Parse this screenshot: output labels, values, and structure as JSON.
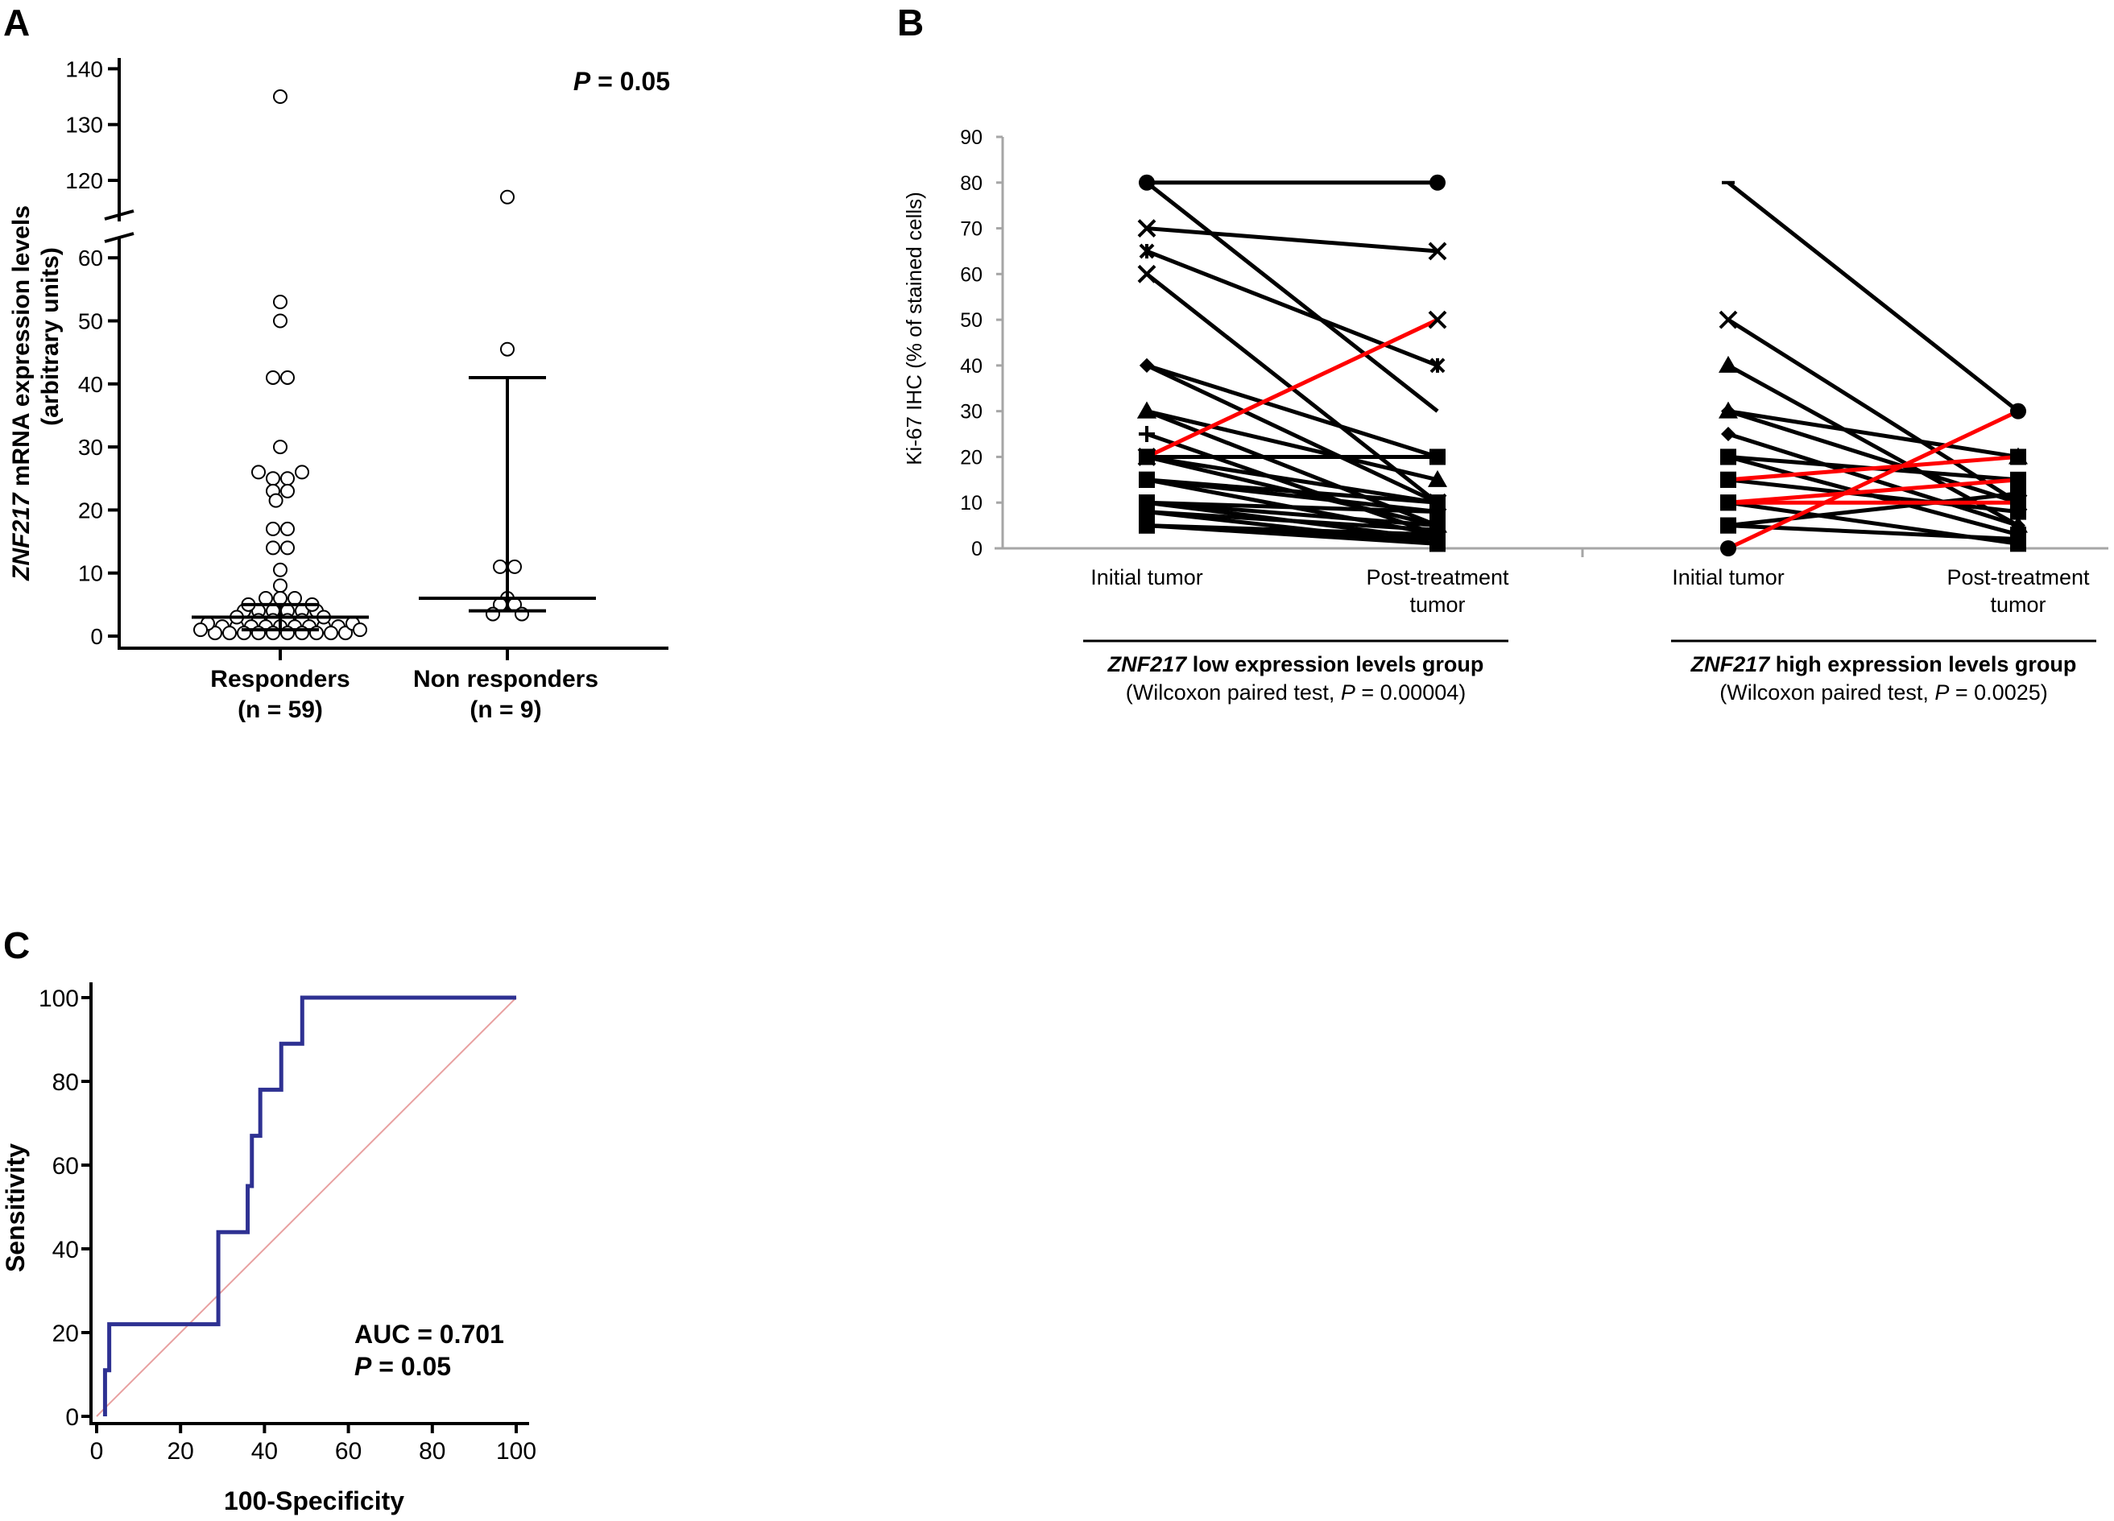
{
  "panels": {
    "a": {
      "letter": "A"
    },
    "b": {
      "letter": "B"
    },
    "c": {
      "letter": "C"
    }
  },
  "colors": {
    "black": "#000000",
    "red": "#ff0000",
    "roc": "#2e3192",
    "diagonal": "#e8a0a0",
    "axisB": "#a6a6a6"
  },
  "chart_data": [
    {
      "id": "A",
      "type": "scatter",
      "ylabel_italic": "ZNF217",
      "ylabel_rest": " mRNA expression levels",
      "ylabel_line2": "(arbitrary units)",
      "pvalue_label": "P",
      "pvalue_rest": " = 0.05",
      "yaxis_break": [
        65,
        115
      ],
      "yticks_lower": [
        0,
        10,
        20,
        30,
        40,
        50,
        60
      ],
      "yticks_upper": [
        120,
        130,
        140
      ],
      "groups": [
        {
          "name": "Responders",
          "n_label": "(n = 59)",
          "median": 3,
          "q1": 1,
          "q3": 5,
          "points": [
            {
              "x": 0,
              "y": 135
            },
            {
              "x": 0,
              "y": 53
            },
            {
              "x": 0,
              "y": 50
            },
            {
              "x": -0.5,
              "y": 41
            },
            {
              "x": 0.5,
              "y": 41
            },
            {
              "x": 0,
              "y": 30
            },
            {
              "x": -1.5,
              "y": 26
            },
            {
              "x": -0.5,
              "y": 25
            },
            {
              "x": 0.5,
              "y": 25
            },
            {
              "x": 1.5,
              "y": 26
            },
            {
              "x": -0.5,
              "y": 23
            },
            {
              "x": 0.5,
              "y": 23
            },
            {
              "x": -0.3,
              "y": 21.5
            },
            {
              "x": -0.5,
              "y": 17
            },
            {
              "x": 0.5,
              "y": 17
            },
            {
              "x": -0.5,
              "y": 14
            },
            {
              "x": 0.5,
              "y": 14
            },
            {
              "x": 0,
              "y": 10.5
            },
            {
              "x": 0,
              "y": 8
            },
            {
              "x": -1,
              "y": 6
            },
            {
              "x": 0,
              "y": 6
            },
            {
              "x": 1,
              "y": 6
            },
            {
              "x": -2.5,
              "y": 4
            },
            {
              "x": -1.5,
              "y": 4
            },
            {
              "x": -0.5,
              "y": 4
            },
            {
              "x": 0.5,
              "y": 4
            },
            {
              "x": 1.5,
              "y": 4
            },
            {
              "x": 2.5,
              "y": 4
            },
            {
              "x": -1.5,
              "y": 2.5
            },
            {
              "x": -0.5,
              "y": 2.5
            },
            {
              "x": 0.5,
              "y": 2.5
            },
            {
              "x": 1.5,
              "y": 2.5
            },
            {
              "x": -4,
              "y": 1.5
            },
            {
              "x": -3,
              "y": 1.5
            },
            {
              "x": -2,
              "y": 1.5
            },
            {
              "x": -1,
              "y": 1.5
            },
            {
              "x": 0,
              "y": 1.5
            },
            {
              "x": 1,
              "y": 1.5
            },
            {
              "x": 2,
              "y": 1.5
            },
            {
              "x": 3,
              "y": 1.5
            },
            {
              "x": 4,
              "y": 1.5
            },
            {
              "x": -4.5,
              "y": 0.5
            },
            {
              "x": -3.5,
              "y": 0.5
            },
            {
              "x": -2.5,
              "y": 0.5
            },
            {
              "x": -1.5,
              "y": 0.5
            },
            {
              "x": -0.5,
              "y": 0.5
            },
            {
              "x": 0.5,
              "y": 0.5
            },
            {
              "x": 1.5,
              "y": 0.5
            },
            {
              "x": 2.5,
              "y": 0.5
            },
            {
              "x": 3.5,
              "y": 0.5
            },
            {
              "x": 4.5,
              "y": 0.5
            },
            {
              "x": 3,
              "y": 3
            },
            {
              "x": -3,
              "y": 3
            },
            {
              "x": 2.2,
              "y": 5
            },
            {
              "x": -2.2,
              "y": 5
            },
            {
              "x": 5,
              "y": 2
            },
            {
              "x": -5,
              "y": 2
            },
            {
              "x": 5.5,
              "y": 1
            },
            {
              "x": -5.5,
              "y": 1
            }
          ]
        },
        {
          "name": "Non responders",
          "n_label": "(n = 9)",
          "median": 6,
          "q1": 4,
          "q3": 41,
          "points": [
            {
              "x": 0,
              "y": 117
            },
            {
              "x": 0,
              "y": 45.5
            },
            {
              "x": -0.5,
              "y": 11
            },
            {
              "x": 0.5,
              "y": 11
            },
            {
              "x": 0,
              "y": 6
            },
            {
              "x": -0.5,
              "y": 5
            },
            {
              "x": 0.5,
              "y": 5
            },
            {
              "x": -1,
              "y": 3.5
            },
            {
              "x": 1,
              "y": 3.5
            }
          ]
        }
      ]
    },
    {
      "id": "B",
      "type": "line",
      "ylabel": "Ki-67 IHC (% of stained cells)",
      "ylim": [
        0,
        90
      ],
      "yticks": [
        0,
        10,
        20,
        30,
        40,
        50,
        60,
        70,
        80,
        90
      ],
      "xtick_initial": "Initial tumor",
      "xtick_post_line1": "Post-treatment",
      "xtick_post_line2": "tumor",
      "groups": [
        {
          "title_italic": "ZNF217",
          "title_rest": " low expression levels group",
          "test_prefix": "(Wilcoxon paired test, ",
          "test_p": "P",
          "test_rest": " = 0.00004)",
          "pairs": [
            {
              "initial": 80,
              "post": 80,
              "marker": "circle",
              "red": false
            },
            {
              "initial": 70,
              "post": 65,
              "marker": "x",
              "red": false
            },
            {
              "initial": 65,
              "post": 40,
              "marker": "star",
              "red": false
            },
            {
              "initial": 60,
              "post": 10,
              "marker": "x",
              "red": false
            },
            {
              "initial": 80,
              "post": 30,
              "marker": "none",
              "red": false
            },
            {
              "initial": 40,
              "post": 20,
              "marker": "diamond",
              "red": false
            },
            {
              "initial": 40,
              "post": 10,
              "marker": "diamond",
              "red": false
            },
            {
              "initial": 30,
              "post": 15,
              "marker": "triangle",
              "red": false
            },
            {
              "initial": 30,
              "post": 5,
              "marker": "triangle",
              "red": false
            },
            {
              "initial": 25,
              "post": 3,
              "marker": "plus",
              "red": false
            },
            {
              "initial": 20,
              "post": 50,
              "marker": "x",
              "red": true
            },
            {
              "initial": 20,
              "post": 20,
              "marker": "square",
              "red": false
            },
            {
              "initial": 20,
              "post": 10,
              "marker": "square",
              "red": false
            },
            {
              "initial": 20,
              "post": 5,
              "marker": "square",
              "red": false
            },
            {
              "initial": 15,
              "post": 8,
              "marker": "square",
              "red": false
            },
            {
              "initial": 15,
              "post": 3,
              "marker": "square",
              "red": false
            },
            {
              "initial": 15,
              "post": 10,
              "marker": "square",
              "red": false
            },
            {
              "initial": 10,
              "post": 5,
              "marker": "square",
              "red": false
            },
            {
              "initial": 10,
              "post": 2,
              "marker": "square",
              "red": false
            },
            {
              "initial": 10,
              "post": 8,
              "marker": "square",
              "red": false
            },
            {
              "initial": 8,
              "post": 1,
              "marker": "square",
              "red": false
            },
            {
              "initial": 8,
              "post": 4,
              "marker": "square",
              "red": false
            },
            {
              "initial": 5,
              "post": 2,
              "marker": "square",
              "red": false
            },
            {
              "initial": 5,
              "post": 1,
              "marker": "square",
              "red": false
            },
            {
              "initial": 5,
              "post": 3,
              "marker": "square",
              "red": false
            }
          ]
        },
        {
          "title_italic": "ZNF217",
          "title_rest": " high expression levels group",
          "test_prefix": "(Wilcoxon paired test, ",
          "test_p": "P",
          "test_rest": " = 0.0025)",
          "pairs": [
            {
              "initial": 80,
              "post": 30,
              "marker": "dash",
              "red": false
            },
            {
              "initial": 50,
              "post": 10,
              "marker": "x",
              "red": false
            },
            {
              "initial": 40,
              "post": 5,
              "marker": "triangle",
              "red": false
            },
            {
              "initial": 30,
              "post": 20,
              "marker": "triangle",
              "red": false
            },
            {
              "initial": 30,
              "post": 10,
              "marker": "diamond",
              "red": false
            },
            {
              "initial": 25,
              "post": 5,
              "marker": "diamond",
              "red": false
            },
            {
              "initial": 20,
              "post": 15,
              "marker": "square",
              "red": false
            },
            {
              "initial": 20,
              "post": 3,
              "marker": "square",
              "red": false
            },
            {
              "initial": 15,
              "post": 20,
              "marker": "square",
              "red": true
            },
            {
              "initial": 15,
              "post": 8,
              "marker": "square",
              "red": false
            },
            {
              "initial": 10,
              "post": 15,
              "marker": "star",
              "red": true
            },
            {
              "initial": 10,
              "post": 10,
              "marker": "square",
              "red": true
            },
            {
              "initial": 10,
              "post": 1,
              "marker": "square",
              "red": false
            },
            {
              "initial": 5,
              "post": 12,
              "marker": "square",
              "red": false
            },
            {
              "initial": 5,
              "post": 2,
              "marker": "square",
              "red": false
            },
            {
              "initial": 0,
              "post": 30,
              "marker": "circle",
              "red": true
            }
          ]
        }
      ]
    },
    {
      "id": "C",
      "type": "line",
      "xlabel": "100-Specificity",
      "ylabel": "Sensitivity",
      "xlim": [
        0,
        100
      ],
      "ylim": [
        0,
        100
      ],
      "xticks": [
        0,
        20,
        40,
        60,
        80,
        100
      ],
      "yticks": [
        0,
        20,
        40,
        60,
        80,
        100
      ],
      "auc_label": "AUC = 0.701",
      "pvalue_label": "P",
      "pvalue_rest": " = 0.05",
      "roc": {
        "x": [
          2,
          2,
          3,
          3,
          6,
          6,
          29,
          29,
          36,
          36,
          37,
          37,
          39,
          39,
          44,
          44,
          49,
          49,
          100
        ],
        "y": [
          0,
          11,
          11,
          22,
          22,
          22,
          22,
          44,
          44,
          55,
          55,
          67,
          67,
          78,
          78,
          89,
          89,
          100,
          100
        ]
      },
      "diagonal": {
        "x": [
          0,
          100
        ],
        "y": [
          0,
          100
        ]
      }
    }
  ]
}
